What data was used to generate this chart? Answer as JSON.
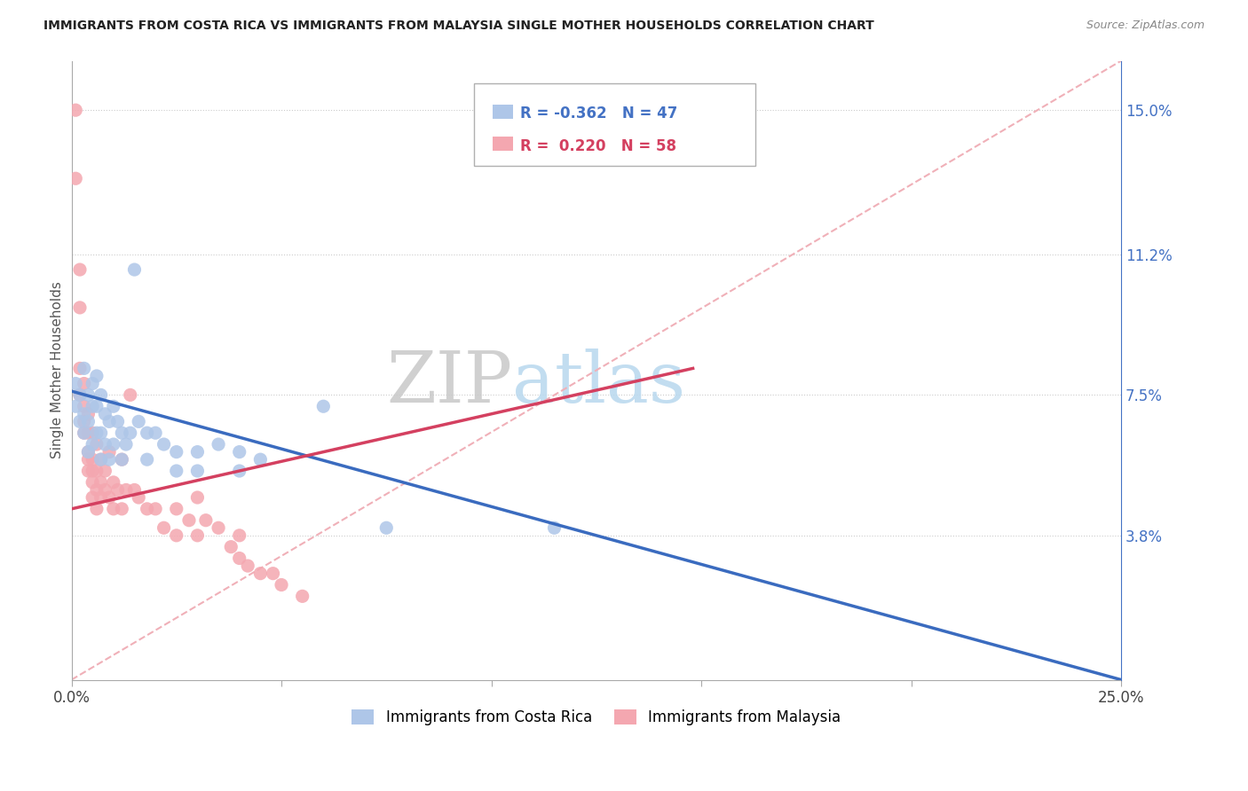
{
  "title": "IMMIGRANTS FROM COSTA RICA VS IMMIGRANTS FROM MALAYSIA SINGLE MOTHER HOUSEHOLDS CORRELATION CHART",
  "source": "Source: ZipAtlas.com",
  "ylabel": "Single Mother Households",
  "right_yticks": [
    "15.0%",
    "11.2%",
    "7.5%",
    "3.8%"
  ],
  "right_ytick_vals": [
    0.15,
    0.112,
    0.075,
    0.038
  ],
  "watermark_zip": "ZIP",
  "watermark_atlas": "atlas",
  "legend_blue_r": "-0.362",
  "legend_blue_n": "47",
  "legend_pink_r": "0.220",
  "legend_pink_n": "58",
  "xmin": 0.0,
  "xmax": 0.25,
  "ymin": 0.0,
  "ymax": 0.163,
  "blue_scatter": [
    [
      0.001,
      0.078
    ],
    [
      0.001,
      0.072
    ],
    [
      0.002,
      0.075
    ],
    [
      0.002,
      0.068
    ],
    [
      0.003,
      0.082
    ],
    [
      0.003,
      0.07
    ],
    [
      0.003,
      0.065
    ],
    [
      0.004,
      0.075
    ],
    [
      0.004,
      0.068
    ],
    [
      0.004,
      0.06
    ],
    [
      0.005,
      0.078
    ],
    [
      0.005,
      0.072
    ],
    [
      0.005,
      0.062
    ],
    [
      0.006,
      0.08
    ],
    [
      0.006,
      0.072
    ],
    [
      0.006,
      0.065
    ],
    [
      0.007,
      0.075
    ],
    [
      0.007,
      0.065
    ],
    [
      0.007,
      0.058
    ],
    [
      0.008,
      0.07
    ],
    [
      0.008,
      0.062
    ],
    [
      0.009,
      0.068
    ],
    [
      0.009,
      0.058
    ],
    [
      0.01,
      0.072
    ],
    [
      0.01,
      0.062
    ],
    [
      0.011,
      0.068
    ],
    [
      0.012,
      0.065
    ],
    [
      0.012,
      0.058
    ],
    [
      0.013,
      0.062
    ],
    [
      0.014,
      0.065
    ],
    [
      0.015,
      0.108
    ],
    [
      0.016,
      0.068
    ],
    [
      0.018,
      0.065
    ],
    [
      0.018,
      0.058
    ],
    [
      0.02,
      0.065
    ],
    [
      0.022,
      0.062
    ],
    [
      0.025,
      0.06
    ],
    [
      0.025,
      0.055
    ],
    [
      0.03,
      0.06
    ],
    [
      0.03,
      0.055
    ],
    [
      0.035,
      0.062
    ],
    [
      0.04,
      0.06
    ],
    [
      0.04,
      0.055
    ],
    [
      0.045,
      0.058
    ],
    [
      0.06,
      0.072
    ],
    [
      0.075,
      0.04
    ],
    [
      0.115,
      0.04
    ]
  ],
  "pink_scatter": [
    [
      0.001,
      0.15
    ],
    [
      0.001,
      0.132
    ],
    [
      0.002,
      0.108
    ],
    [
      0.002,
      0.098
    ],
    [
      0.002,
      0.082
    ],
    [
      0.002,
      0.075
    ],
    [
      0.003,
      0.078
    ],
    [
      0.003,
      0.072
    ],
    [
      0.003,
      0.068
    ],
    [
      0.003,
      0.065
    ],
    [
      0.004,
      0.07
    ],
    [
      0.004,
      0.065
    ],
    [
      0.004,
      0.06
    ],
    [
      0.004,
      0.058
    ],
    [
      0.004,
      0.055
    ],
    [
      0.005,
      0.065
    ],
    [
      0.005,
      0.058
    ],
    [
      0.005,
      0.052
    ],
    [
      0.005,
      0.048
    ],
    [
      0.005,
      0.055
    ],
    [
      0.006,
      0.062
    ],
    [
      0.006,
      0.055
    ],
    [
      0.006,
      0.05
    ],
    [
      0.006,
      0.045
    ],
    [
      0.007,
      0.058
    ],
    [
      0.007,
      0.052
    ],
    [
      0.007,
      0.048
    ],
    [
      0.008,
      0.055
    ],
    [
      0.008,
      0.05
    ],
    [
      0.009,
      0.06
    ],
    [
      0.009,
      0.048
    ],
    [
      0.01,
      0.052
    ],
    [
      0.01,
      0.045
    ],
    [
      0.011,
      0.05
    ],
    [
      0.012,
      0.058
    ],
    [
      0.012,
      0.045
    ],
    [
      0.013,
      0.05
    ],
    [
      0.014,
      0.075
    ],
    [
      0.015,
      0.05
    ],
    [
      0.016,
      0.048
    ],
    [
      0.018,
      0.045
    ],
    [
      0.02,
      0.045
    ],
    [
      0.022,
      0.04
    ],
    [
      0.025,
      0.038
    ],
    [
      0.025,
      0.045
    ],
    [
      0.028,
      0.042
    ],
    [
      0.03,
      0.048
    ],
    [
      0.03,
      0.038
    ],
    [
      0.032,
      0.042
    ],
    [
      0.035,
      0.04
    ],
    [
      0.038,
      0.035
    ],
    [
      0.04,
      0.038
    ],
    [
      0.04,
      0.032
    ],
    [
      0.042,
      0.03
    ],
    [
      0.045,
      0.028
    ],
    [
      0.048,
      0.028
    ],
    [
      0.05,
      0.025
    ],
    [
      0.055,
      0.022
    ]
  ],
  "blue_line_x": [
    0.0,
    0.25
  ],
  "blue_line_y": [
    0.076,
    0.0
  ],
  "pink_line_x": [
    0.0,
    0.148
  ],
  "pink_line_y": [
    0.045,
    0.082
  ],
  "dashed_line_x": [
    0.0,
    0.25
  ],
  "dashed_line_y": [
    0.0,
    0.163
  ],
  "blue_color": "#aec6e8",
  "pink_color": "#f4a7b0",
  "blue_line_color": "#3a6bbf",
  "pink_line_color": "#d44060",
  "dashed_line_color": "#f0b0b8"
}
